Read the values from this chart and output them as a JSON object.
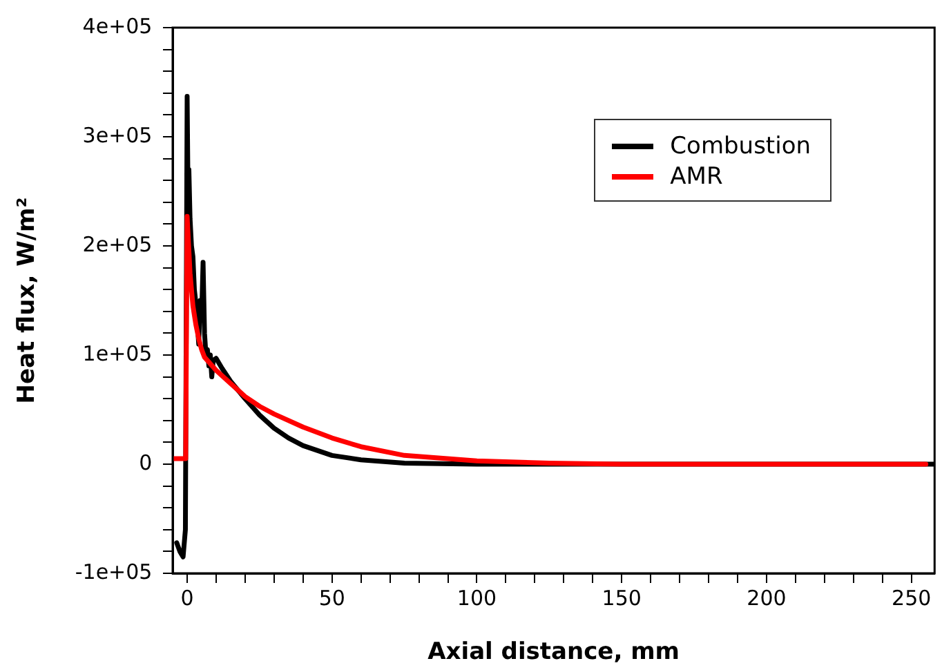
{
  "chart_data": {
    "type": "line",
    "xlabel": "Axial distance, mm",
    "ylabel": "Heat flux, W/m²",
    "xlim": [
      -5,
      258
    ],
    "ylim": [
      -100000,
      400000
    ],
    "xticks": [
      0,
      {
        "value": 10,
        "label": null
      },
      {
        "value": 20,
        "label": null
      },
      {
        "value": 30,
        "label": null
      },
      {
        "value": 40,
        "label": null
      },
      50,
      {
        "value": 60,
        "label": null
      },
      {
        "value": 70,
        "label": null
      },
      {
        "value": 80,
        "label": null
      },
      {
        "value": 90,
        "label": null
      },
      100,
      {
        "value": 110,
        "label": null
      },
      {
        "value": 120,
        "label": null
      },
      {
        "value": 130,
        "label": null
      },
      {
        "value": 140,
        "label": null
      },
      150,
      {
        "value": 160,
        "label": null
      },
      {
        "value": 170,
        "label": null
      },
      {
        "value": 180,
        "label": null
      },
      {
        "value": 190,
        "label": null
      },
      200,
      {
        "value": 210,
        "label": null
      },
      {
        "value": 220,
        "label": null
      },
      {
        "value": 230,
        "label": null
      },
      {
        "value": 240,
        "label": null
      },
      250
    ],
    "yticks": [
      {
        "value": -100000,
        "label": "-1e+05"
      },
      {
        "value": -80000,
        "label": null
      },
      {
        "value": -60000,
        "label": null
      },
      {
        "value": -40000,
        "label": null
      },
      {
        "value": -20000,
        "label": null
      },
      {
        "value": 0,
        "label": "0"
      },
      {
        "value": 20000,
        "label": null
      },
      {
        "value": 40000,
        "label": null
      },
      {
        "value": 60000,
        "label": null
      },
      {
        "value": 80000,
        "label": null
      },
      {
        "value": 100000,
        "label": "1e+05"
      },
      {
        "value": 120000,
        "label": null
      },
      {
        "value": 140000,
        "label": null
      },
      {
        "value": 160000,
        "label": null
      },
      {
        "value": 180000,
        "label": null
      },
      {
        "value": 200000,
        "label": "2e+05"
      },
      {
        "value": 220000,
        "label": null
      },
      {
        "value": 240000,
        "label": null
      },
      {
        "value": 260000,
        "label": null
      },
      {
        "value": 280000,
        "label": null
      },
      {
        "value": 300000,
        "label": "3e+05"
      },
      {
        "value": 320000,
        "label": null
      },
      {
        "value": 340000,
        "label": null
      },
      {
        "value": 360000,
        "label": null
      },
      {
        "value": 380000,
        "label": null
      },
      {
        "value": 400000,
        "label": "4e+05"
      }
    ],
    "grid": false,
    "legend": "top right",
    "marker": "none",
    "line_style": "solid",
    "series": [
      {
        "name": "Combustion",
        "color": "#000000",
        "x": [
          -3.6,
          -2.5,
          -1.4,
          -0.6,
          0,
          0.3,
          0.6,
          1,
          1.5,
          2,
          2.5,
          3,
          3.5,
          4,
          4.5,
          5,
          5.5,
          6,
          6.5,
          7,
          7.5,
          8,
          8.5,
          9,
          10,
          12,
          15,
          20,
          25,
          30,
          35,
          40,
          50,
          60,
          75,
          100,
          150,
          200,
          258
        ],
        "values": [
          -72000,
          -80000,
          -85000,
          -60000,
          337000,
          250000,
          270000,
          225000,
          200000,
          190000,
          160000,
          148000,
          130000,
          110000,
          150000,
          135000,
          185000,
          120000,
          100000,
          105000,
          90000,
          100000,
          80000,
          95000,
          97000,
          88000,
          76000,
          60000,
          45000,
          33000,
          24000,
          17000,
          8000,
          4000,
          1000,
          0,
          0,
          0,
          0
        ]
      },
      {
        "name": "AMR",
        "color": "#ff0000",
        "x": [
          -5,
          -0.5,
          0,
          1,
          2,
          3,
          4,
          5,
          6,
          8,
          10,
          15,
          20,
          25,
          30,
          40,
          50,
          60,
          75,
          100,
          125,
          150,
          200,
          255
        ],
        "values": [
          5000,
          5000,
          227000,
          175000,
          145000,
          128000,
          115000,
          105000,
          98000,
          92000,
          86000,
          74000,
          62000,
          53000,
          46000,
          34000,
          24000,
          16000,
          8000,
          3000,
          1000,
          0,
          0,
          0
        ]
      }
    ]
  }
}
